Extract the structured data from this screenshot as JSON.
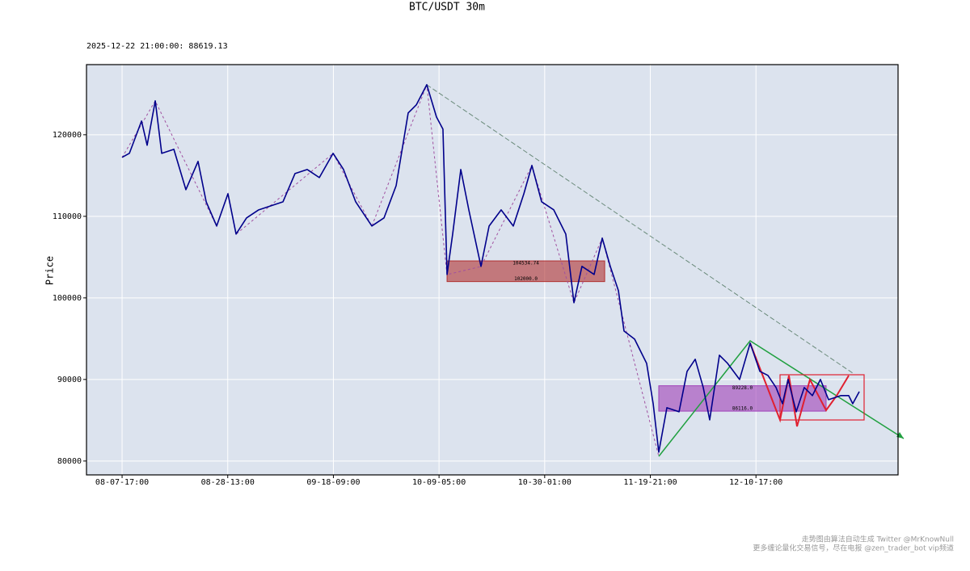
{
  "chart_data": {
    "type": "line",
    "title": "BTC/USDT 30m",
    "subtitle": "2025-12-22 21:00:00: 88619.13",
    "y_label": "Price",
    "x": [
      0,
      69,
      184,
      237,
      314,
      375,
      490,
      604,
      719,
      796,
      895,
      1002,
      1079,
      1178,
      1293,
      1408,
      1523,
      1637,
      1752,
      1867,
      1997,
      2096,
      2211,
      2364,
      2479,
      2594,
      2708,
      2785,
      2884,
      2976,
      3037,
      3076,
      3129,
      3206,
      3282,
      3397,
      3474,
      3588,
      3703,
      3803,
      3879,
      3971,
      4086,
      4200,
      4277,
      4353,
      4468,
      4545,
      4621,
      4698,
      4751,
      4851,
      4965,
      5027,
      5080,
      5157,
      5272,
      5348,
      5425,
      5501,
      5562,
      5654,
      5731,
      5845,
      5945,
      6037,
      6113,
      6190,
      6251,
      6304,
      6381,
      6457,
      6534,
      6610,
      6687,
      6802,
      6878,
      6916,
      6978
    ],
    "series": [
      {
        "color": "#00008b",
        "values": [
          117228,
          117723,
          121683,
          118713,
          124159,
          117723,
          118218,
          113268,
          116733,
          111782,
          108812,
          112772,
          107822,
          109802,
          110792,
          111287,
          111782,
          115247,
          115742,
          114752,
          117723,
          115742,
          111782,
          108812,
          109802,
          113762,
          122673,
          123663,
          126138,
          122178,
          120693,
          102871,
          107822,
          115742,
          110792,
          103861,
          108812,
          110792,
          108812,
          112772,
          116238,
          111782,
          110792,
          107822,
          99406,
          103861,
          102871,
          107327,
          103861,
          100891,
          95941,
          94950,
          91980,
          87030,
          81089,
          86535,
          86040,
          90990,
          92475,
          89010,
          85050,
          92970,
          91980,
          90000,
          94455,
          90990,
          90495,
          89010,
          87030,
          90000,
          86040,
          89010,
          88020,
          90000,
          87525,
          88020,
          88020,
          87030,
          88515
        ]
      }
    ],
    "zones": [
      {
        "color": "#b03030",
        "x": [
          3076,
          4568
        ],
        "values": [
          104534.74,
          102000
        ],
        "value_labels": [
          "104534.74",
          "102000.0"
        ]
      },
      {
        "color": "#a040b8",
        "x": [
          5080,
          6664
        ],
        "values": [
          89228,
          86116
        ],
        "value_labels": [
          "89228.0",
          "86116.0"
        ]
      }
    ],
    "xlim": [
      -337,
      7345
    ],
    "ylim": [
      78300,
      128600
    ],
    "xticks": [
      {
        "value": 0,
        "label": "08-07-17:00"
      },
      {
        "value": 1000,
        "label": "08-28-13:00"
      },
      {
        "value": 2000,
        "label": "09-18-09:00"
      },
      {
        "value": 3000,
        "label": "10-09-05:00"
      },
      {
        "value": 4000,
        "label": "10-30-01:00"
      },
      {
        "value": 5000,
        "label": "11-19-21:00"
      },
      {
        "value": 6000,
        "label": "12-10-17:00"
      }
    ],
    "yticks": [
      80000,
      90000,
      100000,
      110000,
      120000
    ],
    "grid": true
  },
  "footer": {
    "line1": "走势图由算法自动生成  Twitter @MrKnowNull",
    "line2": "更多缠论量化交易信号，尽在电报 @zen_trader_bot vip频道"
  }
}
